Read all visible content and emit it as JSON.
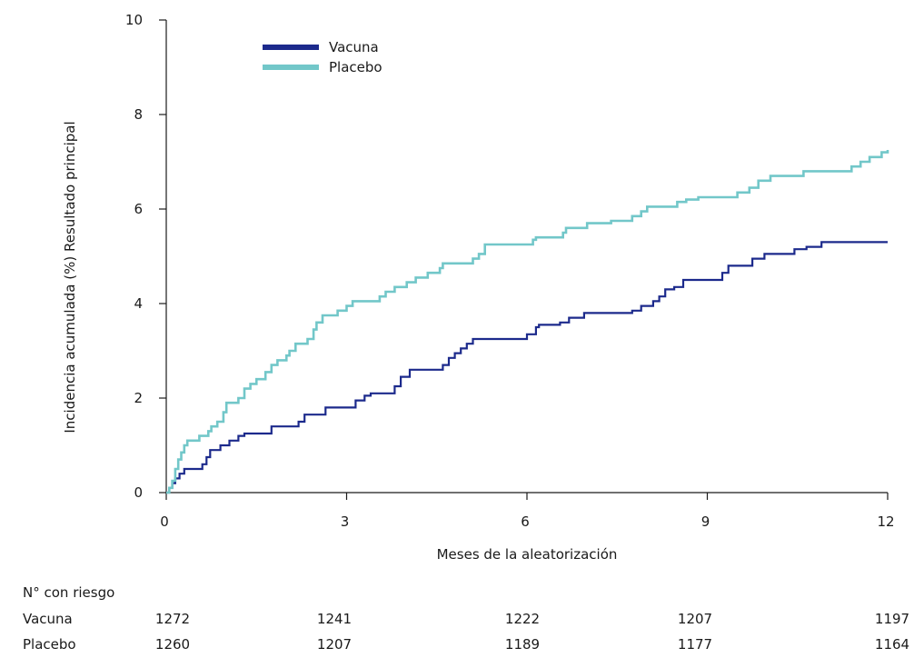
{
  "chart_data": {
    "type": "line",
    "title": "",
    "xlabel": "Meses de la aleatorización",
    "ylabel": "Incidencia acumulada (%) Resultado principal",
    "xlim": [
      0,
      12
    ],
    "ylim": [
      0,
      10
    ],
    "x_ticks": [
      0,
      3,
      6,
      9,
      12
    ],
    "y_ticks": [
      0,
      2,
      4,
      6,
      8,
      10
    ],
    "legend": {
      "position": "top-left"
    },
    "series": [
      {
        "name": "Vacuna",
        "color": "#1c2a8c",
        "step": true,
        "points": [
          [
            0,
            0
          ],
          [
            0.05,
            0.1
          ],
          [
            0.1,
            0.2
          ],
          [
            0.15,
            0.3
          ],
          [
            0.22,
            0.4
          ],
          [
            0.3,
            0.5
          ],
          [
            0.6,
            0.6
          ],
          [
            0.67,
            0.75
          ],
          [
            0.73,
            0.9
          ],
          [
            0.9,
            1.0
          ],
          [
            1.05,
            1.1
          ],
          [
            1.2,
            1.2
          ],
          [
            1.3,
            1.25
          ],
          [
            1.75,
            1.4
          ],
          [
            2.2,
            1.5
          ],
          [
            2.3,
            1.65
          ],
          [
            2.65,
            1.8
          ],
          [
            3.15,
            1.95
          ],
          [
            3.3,
            2.05
          ],
          [
            3.4,
            2.1
          ],
          [
            3.8,
            2.25
          ],
          [
            3.9,
            2.45
          ],
          [
            4.05,
            2.6
          ],
          [
            4.6,
            2.7
          ],
          [
            4.7,
            2.85
          ],
          [
            4.8,
            2.95
          ],
          [
            4.9,
            3.05
          ],
          [
            5.0,
            3.15
          ],
          [
            5.1,
            3.25
          ],
          [
            6.0,
            3.35
          ],
          [
            6.15,
            3.5
          ],
          [
            6.2,
            3.55
          ],
          [
            6.55,
            3.6
          ],
          [
            6.7,
            3.7
          ],
          [
            6.95,
            3.8
          ],
          [
            7.75,
            3.85
          ],
          [
            7.9,
            3.95
          ],
          [
            8.1,
            4.05
          ],
          [
            8.2,
            4.15
          ],
          [
            8.3,
            4.3
          ],
          [
            8.45,
            4.35
          ],
          [
            8.6,
            4.5
          ],
          [
            8.75,
            4.5
          ],
          [
            9.25,
            4.65
          ],
          [
            9.35,
            4.8
          ],
          [
            9.75,
            4.95
          ],
          [
            9.95,
            5.05
          ],
          [
            10.45,
            5.15
          ],
          [
            10.65,
            5.2
          ],
          [
            10.9,
            5.3
          ],
          [
            12,
            5.3
          ]
        ]
      },
      {
        "name": "Placebo",
        "color": "#72c7c9",
        "step": true,
        "points": [
          [
            0,
            0
          ],
          [
            0.05,
            0.1
          ],
          [
            0.1,
            0.25
          ],
          [
            0.15,
            0.5
          ],
          [
            0.2,
            0.7
          ],
          [
            0.25,
            0.85
          ],
          [
            0.3,
            1.0
          ],
          [
            0.35,
            1.1
          ],
          [
            0.5,
            1.1
          ],
          [
            0.55,
            1.2
          ],
          [
            0.7,
            1.3
          ],
          [
            0.75,
            1.4
          ],
          [
            0.85,
            1.5
          ],
          [
            0.95,
            1.7
          ],
          [
            1.0,
            1.9
          ],
          [
            1.2,
            2.0
          ],
          [
            1.3,
            2.2
          ],
          [
            1.4,
            2.3
          ],
          [
            1.5,
            2.4
          ],
          [
            1.65,
            2.55
          ],
          [
            1.75,
            2.7
          ],
          [
            1.85,
            2.8
          ],
          [
            2.0,
            2.9
          ],
          [
            2.05,
            3.0
          ],
          [
            2.15,
            3.15
          ],
          [
            2.35,
            3.25
          ],
          [
            2.45,
            3.45
          ],
          [
            2.5,
            3.6
          ],
          [
            2.6,
            3.75
          ],
          [
            2.85,
            3.85
          ],
          [
            3.0,
            3.95
          ],
          [
            3.1,
            4.05
          ],
          [
            3.55,
            4.15
          ],
          [
            3.65,
            4.25
          ],
          [
            3.8,
            4.35
          ],
          [
            4.0,
            4.45
          ],
          [
            4.15,
            4.55
          ],
          [
            4.35,
            4.65
          ],
          [
            4.55,
            4.75
          ],
          [
            4.6,
            4.85
          ],
          [
            5.1,
            4.95
          ],
          [
            5.2,
            5.05
          ],
          [
            5.3,
            5.25
          ],
          [
            6.1,
            5.35
          ],
          [
            6.15,
            5.4
          ],
          [
            6.6,
            5.5
          ],
          [
            6.65,
            5.6
          ],
          [
            7.0,
            5.7
          ],
          [
            7.4,
            5.75
          ],
          [
            7.75,
            5.85
          ],
          [
            7.9,
            5.95
          ],
          [
            8.0,
            6.05
          ],
          [
            8.5,
            6.15
          ],
          [
            8.65,
            6.2
          ],
          [
            8.85,
            6.25
          ],
          [
            9.5,
            6.35
          ],
          [
            9.7,
            6.45
          ],
          [
            9.85,
            6.6
          ],
          [
            10.05,
            6.7
          ],
          [
            10.6,
            6.8
          ],
          [
            11.4,
            6.9
          ],
          [
            11.55,
            7.0
          ],
          [
            11.7,
            7.1
          ],
          [
            11.9,
            7.2
          ],
          [
            12,
            7.25
          ]
        ]
      }
    ],
    "risk_table": {
      "title": "N° con riesgo",
      "columns": [
        "1272",
        "1241",
        "1222",
        "1207",
        "1197"
      ],
      "rows": [
        {
          "label": "Vacuna",
          "values": [
            "1272",
            "1241",
            "1222",
            "1207",
            "1197"
          ]
        },
        {
          "label": "Placebo",
          "values": [
            "1260",
            "1207",
            "1189",
            "1177",
            "1164"
          ]
        }
      ]
    }
  }
}
